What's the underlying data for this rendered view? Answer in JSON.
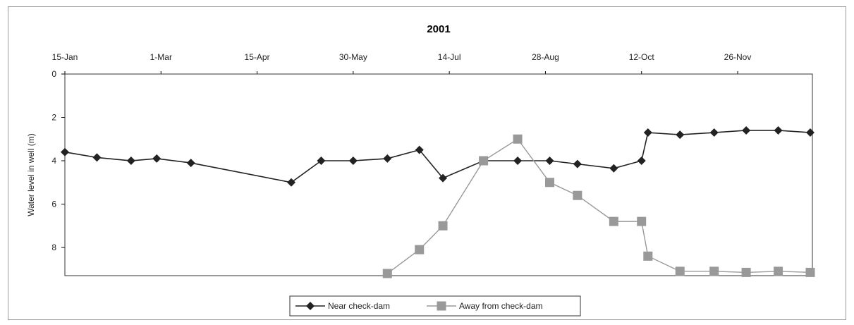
{
  "chart_data": {
    "type": "line",
    "title": "2001",
    "ylabel": "Water level in well (m)",
    "xlabel": "",
    "x_ticks": [
      "15-Jan",
      "1-Mar",
      "15-Apr",
      "30-May",
      "14-Jul",
      "28-Aug",
      "12-Oct",
      "26-Nov"
    ],
    "y_ticks": [
      "0",
      "2",
      "4",
      "6",
      "8"
    ],
    "xlim": [
      "2001-01-15",
      "2001-12-31"
    ],
    "ylim": [
      0,
      9.3
    ],
    "y_inverted": true,
    "grid": false,
    "legend_position": "bottom",
    "series": [
      {
        "name": "Near check-dam",
        "color": "#222222",
        "marker": "diamond",
        "points": [
          {
            "x": "2001-01-15",
            "y": 3.6
          },
          {
            "x": "2001-01-30",
            "y": 3.85
          },
          {
            "x": "2001-02-15",
            "y": 4.0
          },
          {
            "x": "2001-02-27",
            "y": 3.9
          },
          {
            "x": "2001-03-15",
            "y": 4.1
          },
          {
            "x": "2001-05-01",
            "y": 5.0
          },
          {
            "x": "2001-05-15",
            "y": 4.0
          },
          {
            "x": "2001-05-30",
            "y": 4.0
          },
          {
            "x": "2001-06-15",
            "y": 3.9
          },
          {
            "x": "2001-06-30",
            "y": 3.5
          },
          {
            "x": "2001-07-11",
            "y": 4.8
          },
          {
            "x": "2001-07-30",
            "y": 4.0
          },
          {
            "x": "2001-08-15",
            "y": 4.0
          },
          {
            "x": "2001-08-30",
            "y": 4.0
          },
          {
            "x": "2001-09-12",
            "y": 4.15
          },
          {
            "x": "2001-09-29",
            "y": 4.35
          },
          {
            "x": "2001-10-12",
            "y": 4.0
          },
          {
            "x": "2001-10-15",
            "y": 2.7
          },
          {
            "x": "2001-10-30",
            "y": 2.8
          },
          {
            "x": "2001-11-15",
            "y": 2.7
          },
          {
            "x": "2001-11-30",
            "y": 2.6
          },
          {
            "x": "2001-12-15",
            "y": 2.6
          },
          {
            "x": "2001-12-30",
            "y": 2.7
          }
        ]
      },
      {
        "name": "Away from check-dam",
        "color": "#999999",
        "marker": "square",
        "points": [
          {
            "x": "2001-06-15",
            "y": 9.2
          },
          {
            "x": "2001-06-30",
            "y": 8.1
          },
          {
            "x": "2001-07-11",
            "y": 7.0
          },
          {
            "x": "2001-07-30",
            "y": 4.0
          },
          {
            "x": "2001-08-15",
            "y": 3.0
          },
          {
            "x": "2001-08-30",
            "y": 5.0
          },
          {
            "x": "2001-09-12",
            "y": 5.6
          },
          {
            "x": "2001-09-29",
            "y": 6.8
          },
          {
            "x": "2001-10-12",
            "y": 6.8
          },
          {
            "x": "2001-10-15",
            "y": 8.4
          },
          {
            "x": "2001-10-30",
            "y": 9.1
          },
          {
            "x": "2001-11-15",
            "y": 9.1
          },
          {
            "x": "2001-11-30",
            "y": 9.15
          },
          {
            "x": "2001-12-15",
            "y": 9.1
          },
          {
            "x": "2001-12-30",
            "y": 9.15
          }
        ]
      }
    ]
  }
}
